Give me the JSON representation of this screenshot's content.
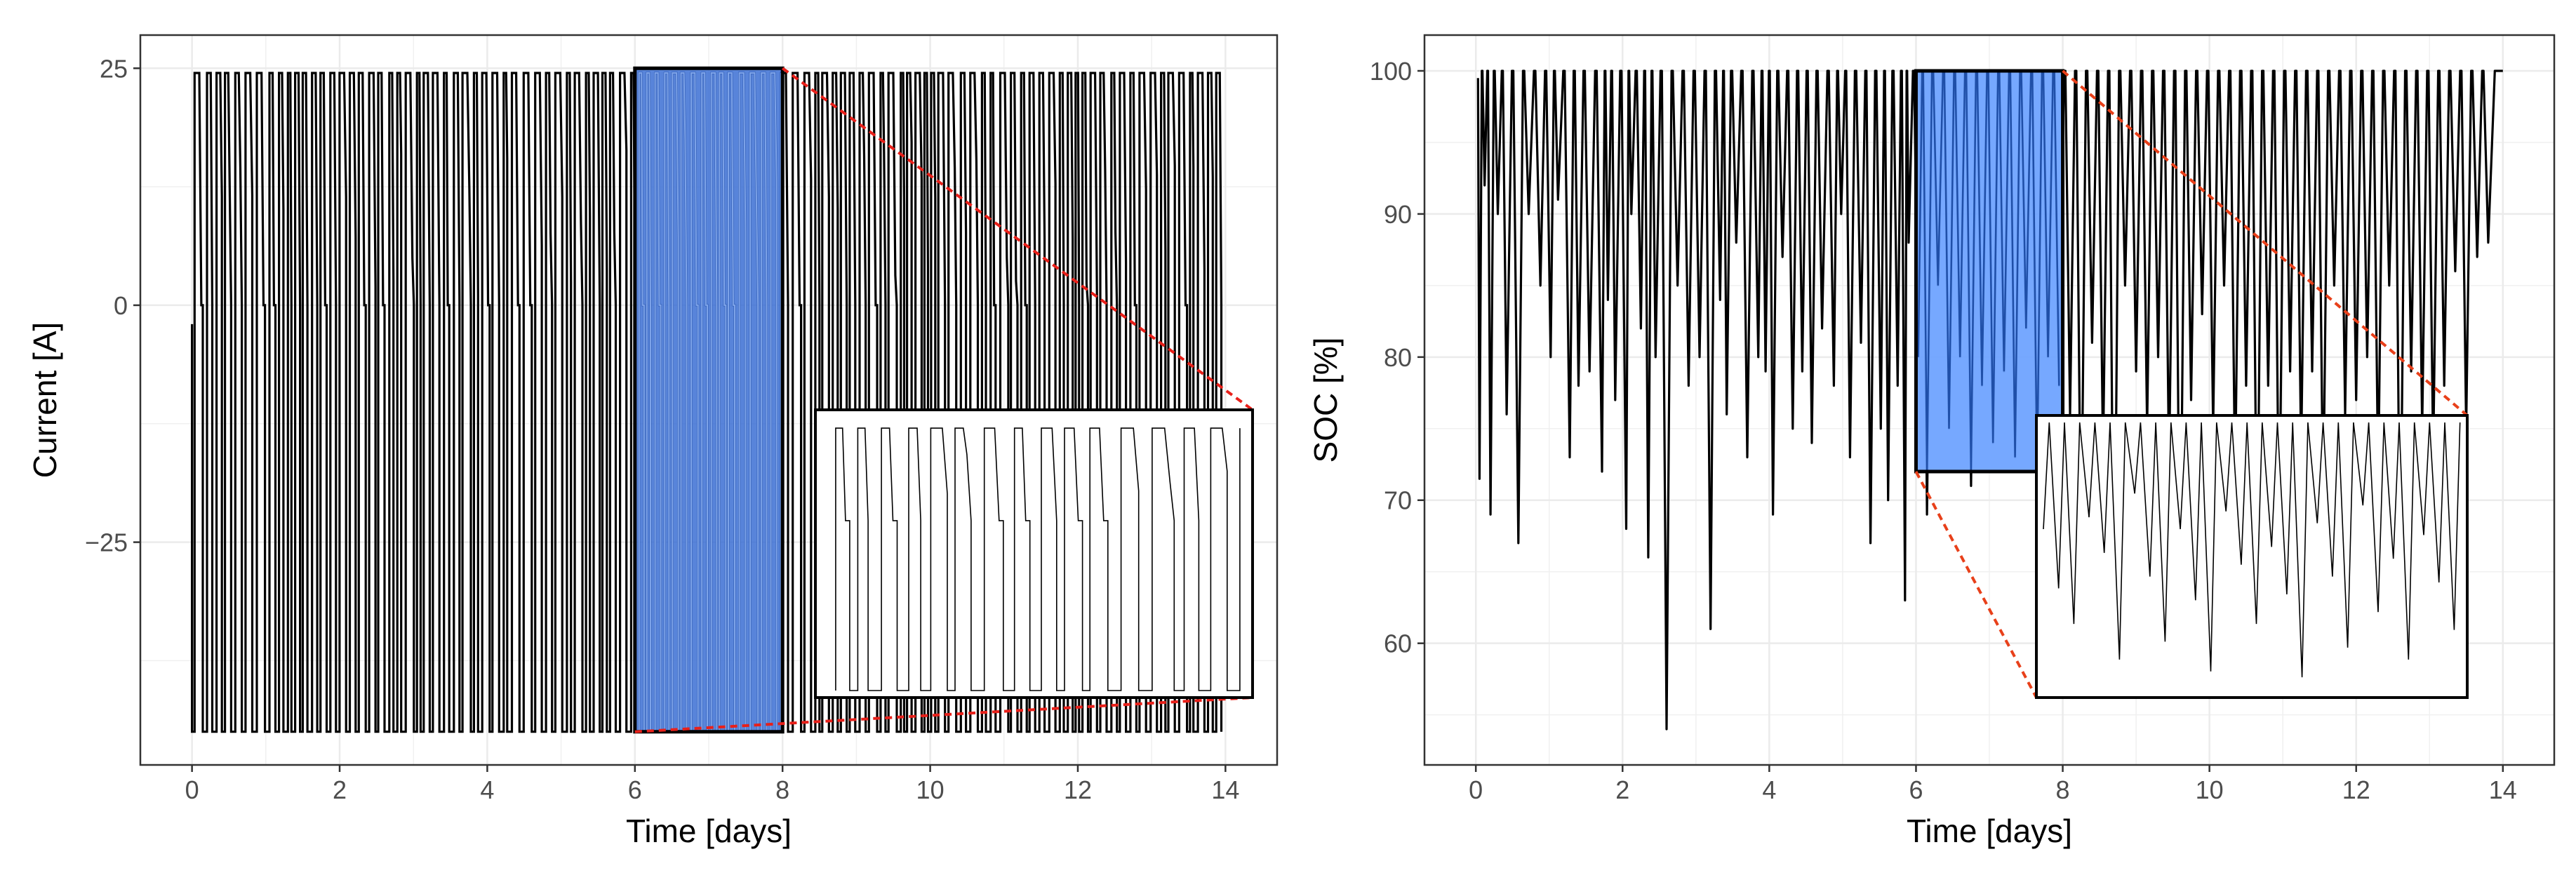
{
  "chart_data": [
    {
      "type": "line",
      "xlabel": "Time [days]",
      "ylabel": "Current [A]",
      "xlim": [
        -0.7,
        14.7
      ],
      "ylim": [
        -48.5,
        28.5
      ],
      "x_ticks": [
        0,
        2,
        4,
        6,
        8,
        10,
        12,
        14
      ],
      "x_tick_labels": [
        "0",
        "2",
        "4",
        "6",
        "8",
        "10",
        "12",
        "14"
      ],
      "y_ticks": [
        -25,
        0,
        25
      ],
      "y_tick_labels": [
        "−25",
        "0",
        "25"
      ],
      "grid": true,
      "series": [
        {
          "color": "#000000",
          "description": "switching current signal between about -45 A (discharge) and about 24.5 A (charge) over 14 days",
          "charge_level": 24.5,
          "discharge_level": -45,
          "rest_level": 0,
          "x_range": [
            0,
            14
          ]
        }
      ],
      "highlight": {
        "x": [
          6,
          8
        ],
        "y": [
          -45,
          25
        ],
        "fill": "#3b6fd4"
      },
      "inset": {
        "x_range": [
          6,
          8
        ],
        "description": "zoomed view of days 6 to 8"
      },
      "connector_color": "#e8201a"
    },
    {
      "type": "line",
      "xlabel": "Time [days]",
      "ylabel": "SOC [%]",
      "xlim": [
        -0.7,
        14.7
      ],
      "ylim": [
        51.5,
        102.5
      ],
      "x_ticks": [
        0,
        2,
        4,
        6,
        8,
        10,
        12,
        14
      ],
      "x_tick_labels": [
        "0",
        "2",
        "4",
        "6",
        "8",
        "10",
        "12",
        "14"
      ],
      "y_ticks": [
        60,
        70,
        80,
        90,
        100
      ],
      "y_tick_labels": [
        "60",
        "70",
        "80",
        "90",
        "100"
      ],
      "grid": true,
      "series": [
        {
          "color": "#000000",
          "description": "state of charge cycling between 100% and daily minima",
          "x_range": [
            0,
            14
          ],
          "minima_x": [
            0.05,
            0.12,
            0.2,
            0.3,
            0.42,
            0.58,
            0.72,
            0.88,
            1.02,
            1.12,
            1.28,
            1.4,
            1.55,
            1.72,
            1.8,
            1.9,
            2.05,
            2.12,
            2.25,
            2.35,
            2.45,
            2.6,
            2.75,
            2.9,
            3.05,
            3.2,
            3.33,
            3.42,
            3.55,
            3.7,
            3.85,
            3.95,
            4.05,
            4.18,
            4.32,
            4.45,
            4.58,
            4.72,
            4.88,
            4.98,
            5.1,
            5.25,
            5.38,
            5.52,
            5.62,
            5.75,
            5.85,
            5.9,
            6.03,
            6.15,
            6.3,
            6.45,
            6.6,
            6.75,
            6.9,
            7.05,
            7.2,
            7.35,
            7.5,
            7.65,
            7.8,
            7.95,
            8.1,
            8.25,
            8.4,
            8.55,
            8.7,
            8.85,
            9.0,
            9.15,
            9.3,
            9.45,
            9.6,
            9.75,
            9.9,
            10.05,
            10.2,
            10.35,
            10.5,
            10.65,
            10.8,
            10.95,
            11.1,
            11.25,
            11.4,
            11.55,
            11.7,
            11.85,
            12.0,
            12.15,
            12.3,
            12.45,
            12.6,
            12.75,
            12.9,
            13.05,
            13.2,
            13.35,
            13.5,
            13.65,
            13.8
          ],
          "minima_y": [
            71.5,
            92,
            69,
            90,
            76,
            67,
            90,
            85,
            80,
            91,
            73,
            78,
            79,
            72,
            84,
            77,
            68,
            90,
            82,
            66,
            80,
            54,
            85,
            78,
            80,
            61,
            84,
            76,
            88,
            73,
            80,
            79,
            69,
            87,
            75,
            79,
            74,
            82,
            78,
            90,
            73,
            81,
            67,
            75,
            70,
            78,
            63,
            88,
            80,
            69,
            85,
            75,
            80,
            71,
            78,
            74,
            79,
            73,
            82,
            70,
            80,
            78,
            76,
            65,
            81,
            73,
            58,
            85,
            79,
            75,
            80,
            72,
            61,
            77,
            83,
            75,
            85,
            71,
            78,
            64,
            78,
            66,
            79,
            73,
            79,
            69,
            85,
            76,
            77,
            80,
            71,
            85,
            63,
            79,
            75,
            73,
            78,
            86,
            75,
            87,
            88
          ]
        }
      ],
      "highlight": {
        "x": [
          6,
          8
        ],
        "y": [
          72,
          100
        ],
        "fill": "#6fa3ff"
      },
      "inset": {
        "x_range": [
          6,
          8
        ],
        "description": "zoomed view of days 6 to 8"
      },
      "connector_color": "#e8401a"
    }
  ]
}
